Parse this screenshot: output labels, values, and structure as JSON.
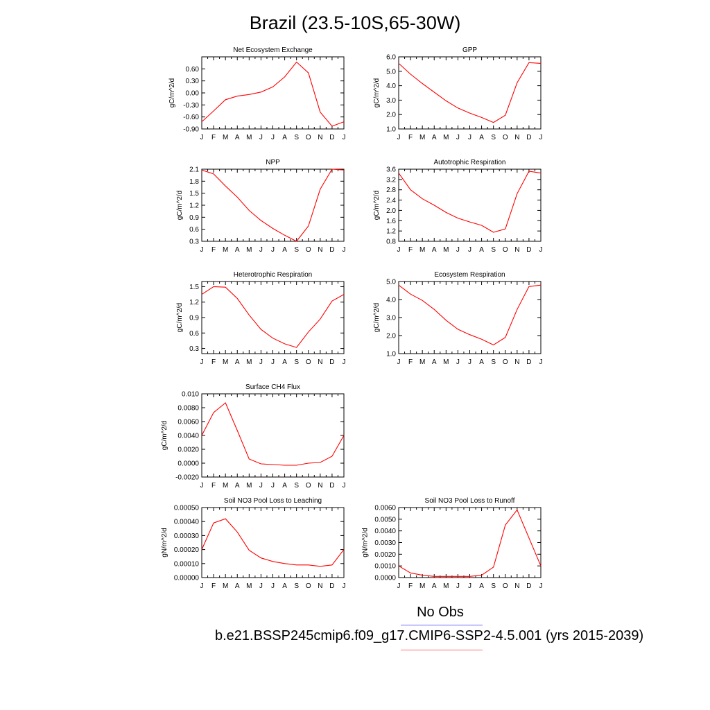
{
  "title": "Brazil (23.5-10S,65-30W)",
  "colors": {
    "line": "#ff0000",
    "obs_line": "#6b6bff",
    "case_line": "#ff6b6b",
    "axis": "#000000"
  },
  "month_labels": [
    "J",
    "F",
    "M",
    "A",
    "M",
    "J",
    "J",
    "A",
    "S",
    "O",
    "N",
    "D",
    "J"
  ],
  "legend": {
    "obs_label": "No Obs",
    "case_label": "b.e21.BSSP245cmip6.f09_g17.CMIP6-SSP2-4.5.001 (yrs 2015-2039)"
  },
  "chart_data": [
    {
      "id": "nee",
      "type": "line",
      "title": "Net Ecosystem Exchange",
      "ylabel": "gC/m^2/d",
      "ylim": [
        -0.9,
        0.9
      ],
      "yticks": [
        "0.60",
        "0.30",
        "0.00",
        "-0.30",
        "-0.60",
        "-0.90"
      ],
      "ytick_values": [
        0.6,
        0.3,
        0.0,
        -0.3,
        -0.6,
        -0.9
      ],
      "values": [
        -0.72,
        -0.45,
        -0.17,
        -0.08,
        -0.04,
        0.02,
        0.15,
        0.4,
        0.77,
        0.5,
        -0.48,
        -0.83,
        -0.72
      ]
    },
    {
      "id": "gpp",
      "type": "line",
      "title": "GPP",
      "ylabel": "gC/m^2/d",
      "ylim": [
        1.0,
        6.0
      ],
      "yticks": [
        "6.0",
        "5.0",
        "4.0",
        "3.0",
        "2.0",
        "1.0"
      ],
      "ytick_values": [
        6,
        5,
        4,
        3,
        2,
        1
      ],
      "values": [
        5.55,
        4.8,
        4.15,
        3.55,
        2.95,
        2.45,
        2.1,
        1.8,
        1.45,
        1.95,
        4.2,
        5.6,
        5.55
      ]
    },
    {
      "id": "npp",
      "type": "line",
      "title": "NPP",
      "ylabel": "gC/m^2/d",
      "ylim": [
        0.3,
        2.1
      ],
      "yticks": [
        "2.1",
        "1.8",
        "1.5",
        "1.2",
        "0.9",
        "0.6",
        "0.3"
      ],
      "ytick_values": [
        2.1,
        1.8,
        1.5,
        1.2,
        0.9,
        0.6,
        0.3
      ],
      "values": [
        2.08,
        1.98,
        1.68,
        1.4,
        1.07,
        0.82,
        0.62,
        0.45,
        0.3,
        0.68,
        1.6,
        2.1,
        2.08
      ]
    },
    {
      "id": "ar",
      "type": "line",
      "title": "Autotrophic Respiration",
      "ylabel": "gC/m^2/d",
      "ylim": [
        0.8,
        3.6
      ],
      "yticks": [
        "3.6",
        "3.2",
        "2.8",
        "2.4",
        "2.0",
        "1.6",
        "1.2",
        "0.8"
      ],
      "ytick_values": [
        3.6,
        3.2,
        2.8,
        2.4,
        2.0,
        1.6,
        1.2,
        0.8
      ],
      "values": [
        3.45,
        2.8,
        2.45,
        2.2,
        1.92,
        1.7,
        1.55,
        1.42,
        1.15,
        1.28,
        2.65,
        3.52,
        3.45
      ]
    },
    {
      "id": "hr",
      "type": "line",
      "title": "Heterotrophic Respiration",
      "ylabel": "gC/m^2/d",
      "ylim": [
        0.2,
        1.6
      ],
      "yticks": [
        "1.5",
        "1.2",
        "0.9",
        "0.6",
        "0.3"
      ],
      "ytick_values": [
        1.5,
        1.2,
        0.9,
        0.6,
        0.3
      ],
      "values": [
        1.35,
        1.5,
        1.49,
        1.27,
        0.95,
        0.67,
        0.5,
        0.39,
        0.32,
        0.62,
        0.87,
        1.22,
        1.35
      ]
    },
    {
      "id": "er",
      "type": "line",
      "title": "Ecosystem Respiration",
      "ylabel": "gC/m^2/d",
      "ylim": [
        1.0,
        5.0
      ],
      "yticks": [
        "5.0",
        "4.0",
        "3.0",
        "2.0",
        "1.0"
      ],
      "ytick_values": [
        5,
        4,
        3,
        2,
        1
      ],
      "values": [
        4.8,
        4.3,
        3.95,
        3.45,
        2.85,
        2.35,
        2.05,
        1.8,
        1.48,
        1.9,
        3.45,
        4.72,
        4.8
      ]
    },
    {
      "id": "ch4",
      "type": "line",
      "title": "Surface CH4 Flux",
      "ylabel": "gC/m^2/d",
      "ylim": [
        -0.002,
        0.01
      ],
      "yticks": [
        "0.010",
        "0.0080",
        "0.0060",
        "0.0040",
        "0.0020",
        "0.0000",
        "-0.0020"
      ],
      "ytick_values": [
        0.01,
        0.008,
        0.006,
        0.004,
        0.002,
        0.0,
        -0.002
      ],
      "values": [
        0.004,
        0.0073,
        0.0087,
        0.0047,
        0.0006,
        -0.0001,
        -0.0002,
        -0.0003,
        -0.0003,
        0.0,
        0.0001,
        0.001,
        0.004
      ]
    },
    {
      "id": "leach",
      "type": "line",
      "title": "Soil NO3 Pool Loss to Leaching",
      "ylabel": "gN/m^2/d",
      "ylim": [
        0,
        0.0005
      ],
      "yticks": [
        "0.00050",
        "0.00040",
        "0.00030",
        "0.00020",
        "0.00010",
        "0.00000"
      ],
      "ytick_values": [
        0.0005,
        0.0004,
        0.0003,
        0.0002,
        0.0001,
        0.0
      ],
      "values": [
        0.0002,
        0.00039,
        0.00042,
        0.000325,
        0.000195,
        0.00014,
        0.000115,
        0.0001,
        9e-05,
        9e-05,
        8e-05,
        9e-05,
        0.0002
      ]
    },
    {
      "id": "runoff",
      "type": "line",
      "title": "Soil NO3 Pool Loss to Runoff",
      "ylabel": "gN/m^2/d",
      "ylim": [
        0,
        0.006
      ],
      "yticks": [
        "0.0060",
        "0.0050",
        "0.0040",
        "0.0030",
        "0.0020",
        "0.0010",
        "0.0000"
      ],
      "ytick_values": [
        0.006,
        0.005,
        0.004,
        0.003,
        0.002,
        0.001,
        0.0
      ],
      "values": [
        0.001,
        0.0004,
        0.0002,
        0.0001,
        0.0001,
        0.0001,
        0.0001,
        0.0002,
        0.0009,
        0.0045,
        0.0058,
        0.0034,
        0.001
      ]
    }
  ]
}
